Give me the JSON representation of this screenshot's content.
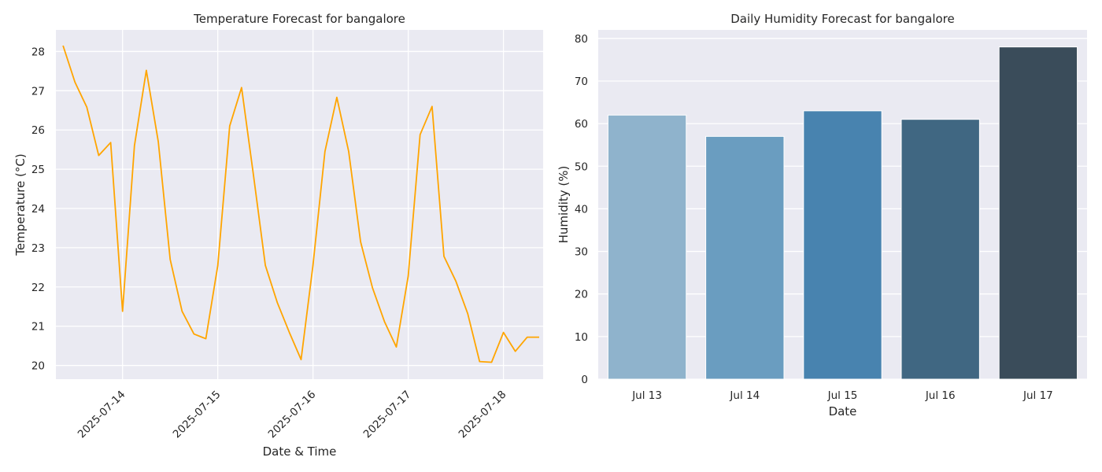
{
  "chart_data": [
    {
      "type": "line",
      "title": "Temperature Forecast for bangalore",
      "xlabel": "Date & Time",
      "ylabel": "Temperature (°C)",
      "line_color": "#FFA500",
      "background": "#EAEAF2",
      "grid": true,
      "ylim": [
        19.65,
        28.55
      ],
      "xlim": [
        "2025-07-13 07:12",
        "2025-07-18 10:00"
      ],
      "yticks": [
        20,
        21,
        22,
        23,
        24,
        25,
        26,
        27,
        28
      ],
      "xticks": [
        "2025-07-14",
        "2025-07-15",
        "2025-07-16",
        "2025-07-17",
        "2025-07-18"
      ],
      "series": [
        {
          "x": [
            "2025-07-13 09:00",
            "2025-07-13 12:00",
            "2025-07-13 15:00",
            "2025-07-13 18:00",
            "2025-07-13 21:00",
            "2025-07-14 00:00",
            "2025-07-14 03:00",
            "2025-07-14 06:00",
            "2025-07-14 09:00",
            "2025-07-14 12:00",
            "2025-07-14 15:00",
            "2025-07-14 18:00",
            "2025-07-14 21:00",
            "2025-07-15 00:00",
            "2025-07-15 03:00",
            "2025-07-15 06:00",
            "2025-07-15 09:00",
            "2025-07-15 12:00",
            "2025-07-15 15:00",
            "2025-07-15 18:00",
            "2025-07-15 21:00",
            "2025-07-16 00:00",
            "2025-07-16 03:00",
            "2025-07-16 06:00",
            "2025-07-16 09:00",
            "2025-07-16 12:00",
            "2025-07-16 15:00",
            "2025-07-16 18:00",
            "2025-07-16 21:00",
            "2025-07-17 00:00",
            "2025-07-17 03:00",
            "2025-07-17 06:00",
            "2025-07-17 09:00",
            "2025-07-17 12:00",
            "2025-07-17 15:00",
            "2025-07-17 18:00",
            "2025-07-17 21:00",
            "2025-07-18 00:00",
            "2025-07-18 03:00",
            "2025-07-18 06:00",
            "2025-07-18 09:00"
          ],
          "values": [
            28.15,
            27.22,
            26.58,
            25.35,
            25.68,
            21.38,
            25.6,
            27.52,
            25.7,
            22.7,
            21.38,
            20.8,
            20.68,
            22.55,
            26.1,
            27.08,
            24.85,
            22.55,
            21.6,
            20.85,
            20.15,
            22.55,
            25.45,
            26.83,
            25.45,
            23.15,
            21.98,
            21.12,
            20.47,
            22.28,
            25.88,
            26.6,
            22.78,
            22.15,
            21.32,
            20.1,
            20.08,
            20.84,
            20.36,
            20.72,
            20.72
          ]
        }
      ]
    },
    {
      "type": "bar",
      "title": "Daily Humidity Forecast for bangalore",
      "xlabel": "Date",
      "ylabel": "Humidity (%)",
      "background": "#EAEAF2",
      "grid": true,
      "ylim": [
        0,
        82
      ],
      "yticks": [
        0,
        10,
        20,
        30,
        40,
        50,
        60,
        70,
        80
      ],
      "categories": [
        "Jul 13",
        "Jul 14",
        "Jul 15",
        "Jul 16",
        "Jul 17"
      ],
      "values": [
        62,
        57,
        63,
        61,
        78
      ],
      "colors": [
        "#8FB3CC",
        "#6A9DC0",
        "#4883AF",
        "#406782",
        "#3A4C5A"
      ]
    }
  ]
}
